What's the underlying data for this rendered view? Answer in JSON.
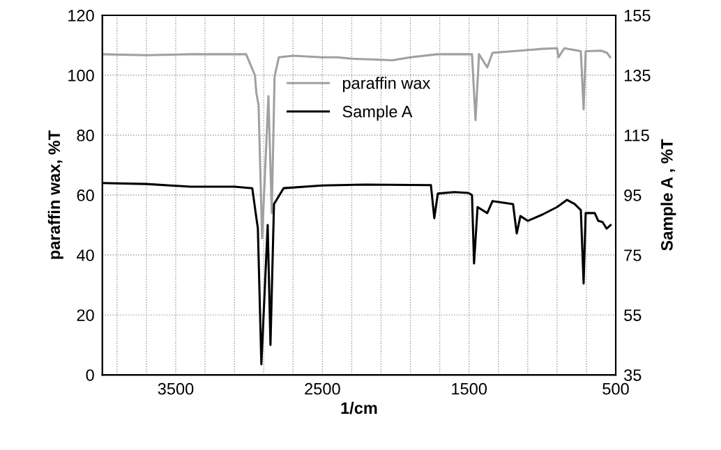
{
  "chart_data": {
    "type": "line",
    "xlabel": "1/cm",
    "ylabel": "paraffin wax, %T",
    "y2label": "Sample A , %T",
    "xlim": [
      4000,
      500
    ],
    "xticks": [
      {
        "value": 3900,
        "label": null
      },
      {
        "value": 3700,
        "label": null
      },
      3500,
      {
        "value": 3300,
        "label": null
      },
      {
        "value": 3100,
        "label": null
      },
      {
        "value": 2900,
        "label": null
      },
      {
        "value": 2700,
        "label": null
      },
      2500,
      {
        "value": 2300,
        "label": null
      },
      {
        "value": 2100,
        "label": null
      },
      {
        "value": 1900,
        "label": null
      },
      {
        "value": 1700,
        "label": null
      },
      1500,
      {
        "value": 1300,
        "label": null
      },
      {
        "value": 1100,
        "label": null
      },
      {
        "value": 900,
        "label": null
      },
      {
        "value": 700,
        "label": null
      },
      500
    ],
    "ylim": [
      0,
      120
    ],
    "yticks": [
      0,
      20,
      40,
      60,
      80,
      100,
      120
    ],
    "y2lim": [
      35,
      155
    ],
    "y2ticks": [
      35,
      55,
      75,
      95,
      115,
      135,
      155
    ],
    "grid": true,
    "legend": "top",
    "line_style": "solid",
    "marker": "none",
    "series": [
      {
        "name": "paraffin wax",
        "color": "#a0a0a0",
        "x": [
          4000,
          3700,
          3400,
          3100,
          3020,
          2960,
          2950,
          2935,
          2911,
          2868,
          2845,
          2826,
          2797,
          2700,
          2500,
          2400,
          2300,
          2165,
          2022,
          1900,
          1718,
          1600,
          1480,
          1456,
          1432,
          1376,
          1340,
          1200,
          1000,
          900,
          890,
          850,
          738,
          719,
          705,
          600,
          560,
          538
        ],
        "values": [
          107,
          106.7,
          107,
          107,
          107,
          100,
          94,
          90,
          45.6,
          93,
          54,
          99.5,
          106,
          106.5,
          106,
          106,
          105.5,
          105.3,
          105,
          106,
          107,
          107,
          107,
          85,
          107,
          102.6,
          107.5,
          108,
          108.8,
          109,
          106,
          109,
          108,
          88.6,
          108,
          108.2,
          107.5,
          106
        ]
      },
      {
        "name": "Sample A",
        "color": "#000000",
        "axis": "y2",
        "x": [
          4000,
          3700,
          3400,
          3100,
          2978,
          2950,
          2940,
          2916,
          2873,
          2854,
          2830,
          2764,
          2500,
          2200,
          1760,
          1737,
          1713,
          1600,
          1504,
          1480,
          1466,
          1442,
          1376,
          1340,
          1200,
          1175,
          1150,
          1100,
          1000,
          900,
          833,
          780,
          738,
          719,
          705,
          643,
          619,
          590,
          562,
          535
        ],
        "values": [
          99,
          98.7,
          97.8,
          97.8,
          97.3,
          87.3,
          84,
          38.5,
          85,
          45,
          92,
          97.3,
          98.2,
          98.5,
          98.3,
          87.3,
          95.5,
          96,
          95.7,
          95,
          72.2,
          91,
          89,
          93,
          92,
          82.2,
          88,
          86.4,
          88.5,
          91,
          93.4,
          92,
          90,
          65.5,
          89,
          89,
          86.4,
          86,
          83.8,
          85
        ]
      }
    ]
  }
}
